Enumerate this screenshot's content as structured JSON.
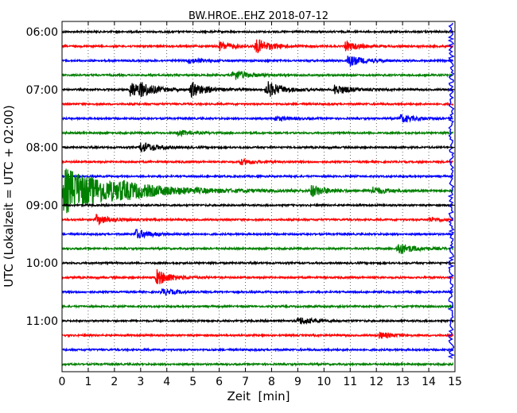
{
  "chart_data": {
    "type": "line",
    "title": "BW.HROE..EHZ 2018-07-12",
    "xlabel": "Zeit  [min]",
    "ylabel": "UTC (Lokalzeit = UTC + 02:00)",
    "xlim": [
      0,
      15
    ],
    "x_ticks": [
      "0",
      "1",
      "2",
      "3",
      "4",
      "5",
      "6",
      "7",
      "8",
      "9",
      "10",
      "11",
      "12",
      "13",
      "14",
      "15"
    ],
    "y_ticks": [
      "06:00",
      "07:00",
      "08:00",
      "09:00",
      "10:00",
      "11:00"
    ],
    "grid": "vertical dotted",
    "colors": [
      "#000000",
      "#ff0000",
      "#0000ff",
      "#008000"
    ],
    "trace_count": 24,
    "trace_interval_minutes": 15,
    "events": [
      {
        "trace": 1,
        "t": 6.0,
        "amp": 0.3
      },
      {
        "trace": 1,
        "t": 7.4,
        "amp": 0.5
      },
      {
        "trace": 1,
        "t": 10.8,
        "amp": 0.32
      },
      {
        "trace": 2,
        "t": 4.8,
        "amp": 0.18
      },
      {
        "trace": 2,
        "t": 10.9,
        "amp": 0.4
      },
      {
        "trace": 3,
        "t": 6.5,
        "amp": 0.4
      },
      {
        "trace": 4,
        "t": 2.6,
        "amp": 0.55
      },
      {
        "trace": 4,
        "t": 3.0,
        "amp": 0.3
      },
      {
        "trace": 4,
        "t": 4.9,
        "amp": 0.55
      },
      {
        "trace": 4,
        "t": 7.8,
        "amp": 0.6
      },
      {
        "trace": 4,
        "t": 10.4,
        "amp": 0.35
      },
      {
        "trace": 6,
        "t": 8.1,
        "amp": 0.15
      },
      {
        "trace": 6,
        "t": 12.9,
        "amp": 0.28
      },
      {
        "trace": 7,
        "t": 4.4,
        "amp": 0.2
      },
      {
        "trace": 8,
        "t": 3.0,
        "amp": 0.38
      },
      {
        "trace": 9,
        "t": 6.8,
        "amp": 0.18
      },
      {
        "trace": 11,
        "t": 0.05,
        "amp": 1.6
      },
      {
        "trace": 11,
        "t": 2.2,
        "amp": 0.18
      },
      {
        "trace": 11,
        "t": 9.5,
        "amp": 0.4
      },
      {
        "trace": 11,
        "t": 11.8,
        "amp": 0.28
      },
      {
        "trace": 13,
        "t": 1.3,
        "amp": 0.35
      },
      {
        "trace": 13,
        "t": 14.0,
        "amp": 0.15
      },
      {
        "trace": 14,
        "t": 2.8,
        "amp": 0.35
      },
      {
        "trace": 15,
        "t": 12.8,
        "amp": 0.45
      },
      {
        "trace": 17,
        "t": 3.6,
        "amp": 0.55
      },
      {
        "trace": 18,
        "t": 3.8,
        "amp": 0.22
      },
      {
        "trace": 20,
        "t": 9.0,
        "amp": 0.28
      },
      {
        "trace": 21,
        "t": 12.1,
        "amp": 0.22
      }
    ]
  }
}
